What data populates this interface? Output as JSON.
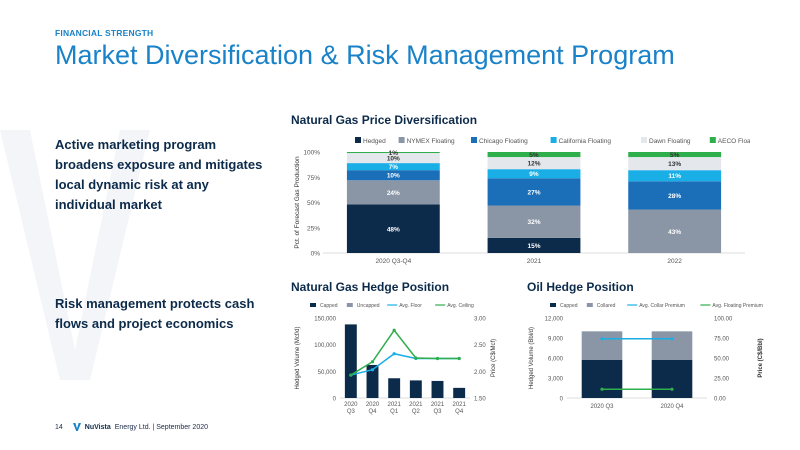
{
  "header": {
    "kicker": "FINANCIAL STRENGTH",
    "title": "Market Diversification & Risk Management Program"
  },
  "points": [
    "Active marketing program broadens exposure and mitigates local dynamic risk at any individual market",
    "Risk management protects cash flows and project economics"
  ],
  "footer": {
    "page": "14",
    "company": "NuVista",
    "rest": "Energy Ltd. | September 2020"
  },
  "colors": {
    "accent": "#1a82c8",
    "navy": "#0c2a4a",
    "gray": "#8a96a6",
    "blue": "#1a6fb8",
    "cyan": "#1aaee6",
    "light": "#e4e7ec",
    "green": "#2fae4c"
  },
  "chart_titles": {
    "gas_price": "Natural Gas Price Diversification",
    "gas_hedge": "Natural Gas Hedge Position",
    "oil_hedge": "Oil Hedge Position"
  },
  "chart_data": [
    {
      "id": "gas_price",
      "type": "bar",
      "stacked": true,
      "percent": true,
      "categories": [
        "2020 Q3-Q4",
        "2021",
        "2022"
      ],
      "ylabel": "Pct. of Forecast Gas Production",
      "ylim": [
        0,
        100
      ],
      "yticks": [
        "0%",
        "25%",
        "50%",
        "75%",
        "100%"
      ],
      "legend_position": "top",
      "series": [
        {
          "name": "Hedged",
          "color": "#0c2a4a",
          "values": [
            48,
            15,
            0
          ],
          "labels": [
            "48%",
            "15%",
            ""
          ]
        },
        {
          "name": "NYMEX Floating",
          "color": "#8a96a6",
          "values": [
            24,
            32,
            43
          ],
          "labels": [
            "24%",
            "32%",
            "43%"
          ]
        },
        {
          "name": "Chicago Floating",
          "color": "#1a6fb8",
          "values": [
            10,
            27,
            28
          ],
          "labels": [
            "10%",
            "27%",
            "28%"
          ]
        },
        {
          "name": "California Floating",
          "color": "#1aaee6",
          "values": [
            7,
            9,
            11
          ],
          "labels": [
            "7%",
            "9%",
            "11%"
          ]
        },
        {
          "name": "Dawn Floating",
          "color": "#e4e7ec",
          "values": [
            10,
            12,
            13
          ],
          "labels": [
            "10%",
            "12%",
            "13%"
          ]
        },
        {
          "name": "AECO Floating",
          "color": "#2fae4c",
          "values": [
            1,
            5,
            5
          ],
          "labels": [
            "1%",
            "5%",
            "5%"
          ]
        }
      ]
    },
    {
      "id": "gas_hedge",
      "type": "bar",
      "categories": [
        [
          "2020",
          "Q3"
        ],
        [
          "2020",
          "Q4"
        ],
        [
          "2021",
          "Q1"
        ],
        [
          "2021",
          "Q2"
        ],
        [
          "2021",
          "Q3"
        ],
        [
          "2021",
          "Q4"
        ]
      ],
      "ylabel": "Hedged Volume (Mcf/d)",
      "y2label": "Price (C$/Mcf)",
      "ylim": [
        0,
        150000
      ],
      "yticks": [
        "0",
        "50,000",
        "100,000",
        "150,000"
      ],
      "y2lim": [
        1.5,
        3.0
      ],
      "y2ticks": [
        "1.50",
        "2.00",
        "2.50",
        "3.00"
      ],
      "legend_position": "top",
      "series": [
        {
          "name": "Capped",
          "color": "#0c2a4a",
          "kind": "bar",
          "values": [
            138000,
            62000,
            37000,
            33000,
            32000,
            19000
          ]
        },
        {
          "name": "Uncapped",
          "color": "#8a96a6",
          "kind": "bar",
          "values": [
            0,
            0,
            0,
            0,
            0,
            0
          ]
        },
        {
          "name": "Avg. Floor",
          "color": "#1aaee6",
          "kind": "line",
          "axis": "y2",
          "values": [
            1.93,
            2.03,
            2.33,
            2.24,
            2.24,
            2.24
          ]
        },
        {
          "name": "Avg. Ceiling",
          "color": "#2fae4c",
          "kind": "line",
          "axis": "y2",
          "values": [
            1.93,
            2.18,
            2.77,
            2.25,
            2.24,
            2.24
          ]
        }
      ]
    },
    {
      "id": "oil_hedge",
      "type": "bar",
      "stacked": true,
      "categories": [
        "2020 Q3",
        "2020 Q4"
      ],
      "ylabel": "Hedged Volume (Bbl/d)",
      "y2label": "Price (C$/Bbl)",
      "ylim": [
        0,
        12000
      ],
      "yticks": [
        "0",
        "3,000",
        "6,000",
        "9,000",
        "12,000"
      ],
      "y2lim": [
        0,
        100
      ],
      "y2ticks": [
        "0.00",
        "25.00",
        "50.00",
        "75.00",
        "100.00"
      ],
      "legend_position": "top",
      "series": [
        {
          "name": "Capped",
          "color": "#0c2a4a",
          "kind": "bar",
          "values": [
            5700,
            5700
          ]
        },
        {
          "name": "Collared",
          "color": "#8a96a6",
          "kind": "bar",
          "values": [
            4300,
            4300
          ]
        },
        {
          "name": "Avg. Collar Premium",
          "color": "#1aaee6",
          "kind": "line",
          "axis": "y2",
          "values": [
            74,
            74
          ]
        },
        {
          "name": "Avg. Floating Premium",
          "color": "#2fae4c",
          "kind": "line",
          "axis": "y2",
          "values": [
            11,
            11
          ]
        }
      ]
    }
  ]
}
